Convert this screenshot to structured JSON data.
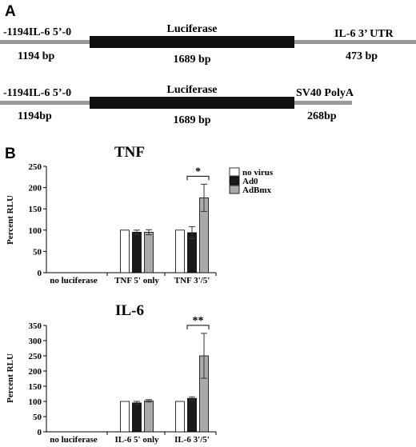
{
  "panel_a": {
    "letter": "A",
    "constructs": [
      {
        "left_label": "-1194IL-6 5’-0",
        "left_size": "1194 bp",
        "mid_label": "Luciferase",
        "mid_size": "1689 bp",
        "right_label": "IL-6 3’ UTR",
        "right_size": "473 bp"
      },
      {
        "left_label": "-1194IL-6 5’-0",
        "left_size": "1194bp",
        "mid_label": "Luciferase",
        "mid_size": "1689 bp",
        "right_label": "SV40 PolyA",
        "right_size": "268bp"
      }
    ]
  },
  "panel_b": {
    "letter": "B"
  },
  "colors": {
    "no_virus": "#ffffff",
    "ad0": "#1a1a1a",
    "adbmx": "#aaaaaa",
    "line_gray": "#999999"
  },
  "legend": [
    "no virus",
    "Ad0",
    "AdBmx"
  ],
  "chart_data": [
    {
      "type": "bar",
      "title": "TNF",
      "ylabel": "Percent RLU",
      "ylim": [
        0,
        250
      ],
      "yticks": [
        0,
        50,
        100,
        150,
        200,
        250
      ],
      "categories": [
        "no luciferase",
        "TNF 5' only",
        "TNF 3'/5'"
      ],
      "series": [
        {
          "name": "no virus",
          "values": [
            null,
            100,
            100
          ],
          "errors": [
            null,
            0,
            0
          ]
        },
        {
          "name": "Ad0",
          "values": [
            null,
            95,
            94
          ],
          "errors": [
            null,
            5,
            14
          ]
        },
        {
          "name": "AdBmx",
          "values": [
            null,
            95,
            176
          ],
          "errors": [
            null,
            6,
            32
          ]
        }
      ],
      "significance": {
        "category_index": 2,
        "label": "*"
      }
    },
    {
      "type": "bar",
      "title": "IL-6",
      "ylabel": "Percent RLU",
      "ylim": [
        0,
        350
      ],
      "yticks": [
        0,
        50,
        100,
        150,
        200,
        250,
        300,
        350
      ],
      "categories": [
        "no luciferase",
        "IL-6 5' only",
        "IL-6 3'/5'"
      ],
      "series": [
        {
          "name": "no virus",
          "values": [
            null,
            100,
            100
          ],
          "errors": [
            null,
            0,
            0
          ]
        },
        {
          "name": "Ad0",
          "values": [
            null,
            95,
            110
          ],
          "errors": [
            null,
            5,
            5
          ]
        },
        {
          "name": "AdBmx",
          "values": [
            null,
            102,
            250
          ],
          "errors": [
            null,
            4,
            74
          ]
        }
      ],
      "significance": {
        "category_index": 2,
        "label": "**"
      }
    }
  ]
}
